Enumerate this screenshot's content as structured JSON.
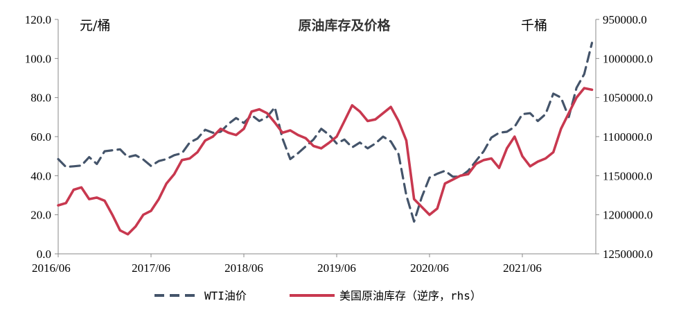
{
  "chart_data": {
    "type": "line",
    "title": "原油库存及价格",
    "left_unit": "元/桶",
    "right_unit": "千桶",
    "x_ticks": [
      "2016/06",
      "2017/06",
      "2018/06",
      "2019/06",
      "2020/06",
      "2021/06"
    ],
    "y_left": {
      "min": 0,
      "max": 120,
      "ticks": [
        "0.0",
        "20.0",
        "40.0",
        "60.0",
        "80.0",
        "100.0",
        "120.0"
      ]
    },
    "y_right": {
      "min": 950000,
      "max": 1250000,
      "reversed": true,
      "ticks": [
        "950000.0",
        "1000000.0",
        "1050000.0",
        "1100000.0",
        "1150000.0",
        "1200000.0",
        "1250000.0"
      ]
    },
    "legend_position": "bottom",
    "colors": {
      "wti": "#44546A",
      "inventory": "#C8384F"
    },
    "series": [
      {
        "name": "WTI油价",
        "axis": "left",
        "style": "dashed",
        "x": [
          "2016-06",
          "2016-07",
          "2016-08",
          "2016-09",
          "2016-10",
          "2016-11",
          "2016-12",
          "2017-01",
          "2017-02",
          "2017-03",
          "2017-04",
          "2017-05",
          "2017-06",
          "2017-07",
          "2017-08",
          "2017-09",
          "2017-10",
          "2017-11",
          "2017-12",
          "2018-01",
          "2018-02",
          "2018-03",
          "2018-04",
          "2018-05",
          "2018-06",
          "2018-07",
          "2018-08",
          "2018-09",
          "2018-10",
          "2018-11",
          "2018-12",
          "2019-01",
          "2019-02",
          "2019-03",
          "2019-04",
          "2019-05",
          "2019-06",
          "2019-07",
          "2019-08",
          "2019-09",
          "2019-10",
          "2019-11",
          "2019-12",
          "2020-01",
          "2020-02",
          "2020-03",
          "2020-04",
          "2020-05",
          "2020-06",
          "2020-07",
          "2020-08",
          "2020-09",
          "2020-10",
          "2020-11",
          "2020-12",
          "2021-01",
          "2021-02",
          "2021-03",
          "2021-04",
          "2021-05",
          "2021-06",
          "2021-07",
          "2021-08",
          "2021-09",
          "2021-10",
          "2021-11",
          "2021-12",
          "2022-01",
          "2022-02",
          "2022-03"
        ],
        "values": [
          48.5,
          44.5,
          44.8,
          45.2,
          49.5,
          46.0,
          52.5,
          53.0,
          53.5,
          49.5,
          50.5,
          48.3,
          45.0,
          47.5,
          48.5,
          50.5,
          51.5,
          57.0,
          59.0,
          63.5,
          62.0,
          62.5,
          66.5,
          69.5,
          67.0,
          71.0,
          68.0,
          70.0,
          75.0,
          59.0,
          48.5,
          51.5,
          55.0,
          58.5,
          64.0,
          61.0,
          56.5,
          58.5,
          54.5,
          57.0,
          54.0,
          56.5,
          60.0,
          57.5,
          51.0,
          30.0,
          16.5,
          29.0,
          39.0,
          41.0,
          42.5,
          39.5,
          39.5,
          42.5,
          47.5,
          52.5,
          59.5,
          62.0,
          62.5,
          65.0,
          71.5,
          72.0,
          68.0,
          71.5,
          82.0,
          80.0,
          70.0,
          85.0,
          92.0,
          108.0
        ]
      },
      {
        "name": "美国原油库存（逆序，rhs）",
        "axis": "right",
        "style": "solid",
        "x": [
          "2016-06",
          "2016-07",
          "2016-08",
          "2016-09",
          "2016-10",
          "2016-11",
          "2016-12",
          "2017-01",
          "2017-02",
          "2017-03",
          "2017-04",
          "2017-05",
          "2017-06",
          "2017-07",
          "2017-08",
          "2017-09",
          "2017-10",
          "2017-11",
          "2017-12",
          "2018-01",
          "2018-02",
          "2018-03",
          "2018-04",
          "2018-05",
          "2018-06",
          "2018-07",
          "2018-08",
          "2018-09",
          "2018-10",
          "2018-11",
          "2018-12",
          "2019-01",
          "2019-02",
          "2019-03",
          "2019-04",
          "2019-05",
          "2019-06",
          "2019-07",
          "2019-08",
          "2019-09",
          "2019-10",
          "2019-11",
          "2019-12",
          "2020-01",
          "2020-02",
          "2020-03",
          "2020-04",
          "2020-05",
          "2020-06",
          "2020-07",
          "2020-08",
          "2020-09",
          "2020-10",
          "2020-11",
          "2020-12",
          "2021-01",
          "2021-02",
          "2021-03",
          "2021-04",
          "2021-05",
          "2021-06",
          "2021-07",
          "2021-08",
          "2021-09",
          "2021-10",
          "2021-11",
          "2021-12",
          "2022-01",
          "2022-02",
          "2022-03"
        ],
        "values": [
          1188000,
          1185000,
          1168000,
          1165000,
          1180000,
          1178000,
          1182000,
          1200000,
          1220000,
          1225000,
          1215000,
          1200000,
          1195000,
          1180000,
          1160000,
          1148000,
          1130000,
          1128000,
          1120000,
          1105000,
          1100000,
          1090000,
          1095000,
          1098000,
          1090000,
          1068000,
          1065000,
          1070000,
          1082000,
          1095000,
          1092000,
          1098000,
          1102000,
          1112000,
          1115000,
          1108000,
          1100000,
          1080000,
          1060000,
          1068000,
          1080000,
          1078000,
          1070000,
          1062000,
          1080000,
          1105000,
          1180000,
          1190000,
          1200000,
          1192000,
          1160000,
          1155000,
          1150000,
          1148000,
          1135000,
          1130000,
          1128000,
          1140000,
          1115000,
          1100000,
          1125000,
          1138000,
          1132000,
          1128000,
          1120000,
          1090000,
          1070000,
          1050000,
          1038000,
          1040000
        ]
      }
    ]
  }
}
